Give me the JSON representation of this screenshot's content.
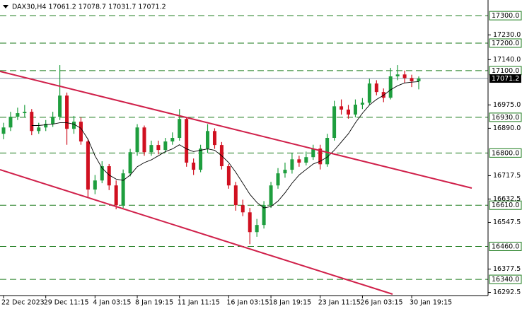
{
  "chart_data": {
    "type": "candlestick",
    "title": "DAX30,H4  17061.2 17078.7 17031.7 17071.2",
    "categories": [
      "22 Dec 2023",
      null,
      null,
      null,
      null,
      null,
      "29 Dec 11:15",
      null,
      null,
      null,
      null,
      null,
      null,
      "4 Jan 03:15",
      null,
      null,
      null,
      null,
      null,
      "8 Jan 19:15",
      null,
      null,
      null,
      null,
      null,
      "11 Jan 11:15",
      null,
      null,
      null,
      null,
      null,
      null,
      "16 Jan 03:15",
      null,
      null,
      null,
      null,
      null,
      "18 Jan 19:15",
      null,
      null,
      null,
      null,
      null,
      null,
      "23 Jan 11:15",
      null,
      null,
      null,
      null,
      null,
      "26 Jan 03:15",
      null,
      null,
      null,
      null,
      null,
      null,
      "30 Jan 19:15",
      null
    ],
    "open": [
      16870,
      16893,
      16932,
      16945,
      16950,
      16880,
      16893,
      16906,
      16932,
      17009,
      16888,
      16914,
      16842,
      16667,
      16700,
      16752,
      16682,
      16610,
      16726,
      16803,
      16893,
      16803,
      16829,
      16811,
      16842,
      16855,
      16924,
      16765,
      16739,
      16816,
      16880,
      16829,
      16752,
      16682,
      16610,
      16584,
      16512,
      16538,
      16610,
      16682,
      16726,
      16739,
      16777,
      16765,
      16785,
      16816,
      16759,
      16855,
      16970,
      16958,
      16940,
      16976,
      16983,
      17053,
      17022,
      17001,
      17079,
      17086,
      17073,
      17061.2
    ],
    "high": [
      16910,
      16950,
      16965,
      16975,
      16960,
      16910,
      16920,
      16950,
      17120,
      17020,
      16935,
      16930,
      16850,
      16720,
      16770,
      16760,
      16700,
      16740,
      16815,
      16905,
      16900,
      16845,
      16845,
      16855,
      16875,
      16960,
      16930,
      16780,
      16830,
      16905,
      16890,
      16840,
      16760,
      16695,
      16630,
      16600,
      16560,
      16625,
      16695,
      16745,
      16765,
      16800,
      16790,
      16805,
      16830,
      16830,
      16870,
      16990,
      16995,
      16975,
      16995,
      17000,
      17070,
      17065,
      17035,
      17110,
      17120,
      17100,
      17085,
      17078.7
    ],
    "low": [
      16850,
      16880,
      16920,
      16930,
      16865,
      16870,
      16880,
      16895,
      16920,
      16830,
      16870,
      16830,
      16640,
      16650,
      16690,
      16665,
      16595,
      16600,
      16715,
      16790,
      16790,
      16790,
      16795,
      16800,
      16830,
      16845,
      16750,
      16720,
      16730,
      16800,
      16815,
      16740,
      16670,
      16590,
      16570,
      16468,
      16495,
      16525,
      16600,
      16670,
      16710,
      16725,
      16750,
      16755,
      16775,
      16740,
      16750,
      16845,
      16940,
      16925,
      16930,
      16960,
      16975,
      17010,
      16985,
      16995,
      17065,
      17055,
      17040,
      17031.7
    ],
    "close": [
      16893,
      16932,
      16945,
      16950,
      16880,
      16893,
      16906,
      16932,
      17009,
      16888,
      16914,
      16842,
      16667,
      16700,
      16752,
      16682,
      16610,
      16726,
      16803,
      16893,
      16803,
      16829,
      16811,
      16842,
      16855,
      16924,
      16765,
      16739,
      16816,
      16880,
      16829,
      16752,
      16682,
      16610,
      16584,
      16512,
      16538,
      16610,
      16682,
      16726,
      16739,
      16777,
      16765,
      16785,
      16816,
      16759,
      16855,
      16970,
      16958,
      16940,
      16976,
      16983,
      17053,
      17022,
      17001,
      17079,
      17086,
      17073,
      17061,
      17071.2
    ],
    "ma": [
      null,
      null,
      null,
      null,
      16900,
      16900,
      16903,
      16905,
      16910,
      16910,
      16905,
      16890,
      16850,
      16790,
      16745,
      16720,
      16705,
      16700,
      16720,
      16750,
      16765,
      16775,
      16790,
      16805,
      16815,
      16830,
      16815,
      16805,
      16810,
      16815,
      16810,
      16790,
      16765,
      16730,
      16690,
      16650,
      16620,
      16600,
      16605,
      16625,
      16655,
      16690,
      16720,
      16740,
      16760,
      16770,
      16785,
      16810,
      16840,
      16870,
      16910,
      16945,
      16975,
      16995,
      17010,
      17030,
      17045,
      17055,
      17058,
      17060
    ],
    "up_color": "#1e9e3e",
    "down_color": "#d01020",
    "ma_color": "#000000",
    "level_color": "#1a7a1a",
    "ylim": [
      16281,
      17357
    ],
    "yticks": [
      {
        "value": 17230,
        "label": "17230.0"
      },
      {
        "value": 17140,
        "label": "17140.0"
      },
      {
        "value": 16975,
        "label": "16975.0"
      },
      {
        "value": 16890,
        "label": "16890.0"
      },
      {
        "value": 16717.5,
        "label": "16717.5"
      },
      {
        "value": 16632.5,
        "label": "16632.5"
      },
      {
        "value": 16547.5,
        "label": "16547.5"
      },
      {
        "value": 16377.5,
        "label": "16377.5"
      },
      {
        "value": 16292.5,
        "label": "16292.5"
      }
    ],
    "levels": [
      {
        "value": 17300,
        "label": "17300.0"
      },
      {
        "value": 17200,
        "label": "17200.0"
      },
      {
        "value": 17100,
        "label": "17100.0"
      },
      {
        "value": 16930,
        "label": "16930.0"
      },
      {
        "value": 16800,
        "label": "16800.0"
      },
      {
        "value": 16610,
        "label": "16610.0"
      },
      {
        "value": 16460,
        "label": "16460.0"
      },
      {
        "value": 16340,
        "label": "16340.0"
      }
    ],
    "current_price": 17071.2
  }
}
